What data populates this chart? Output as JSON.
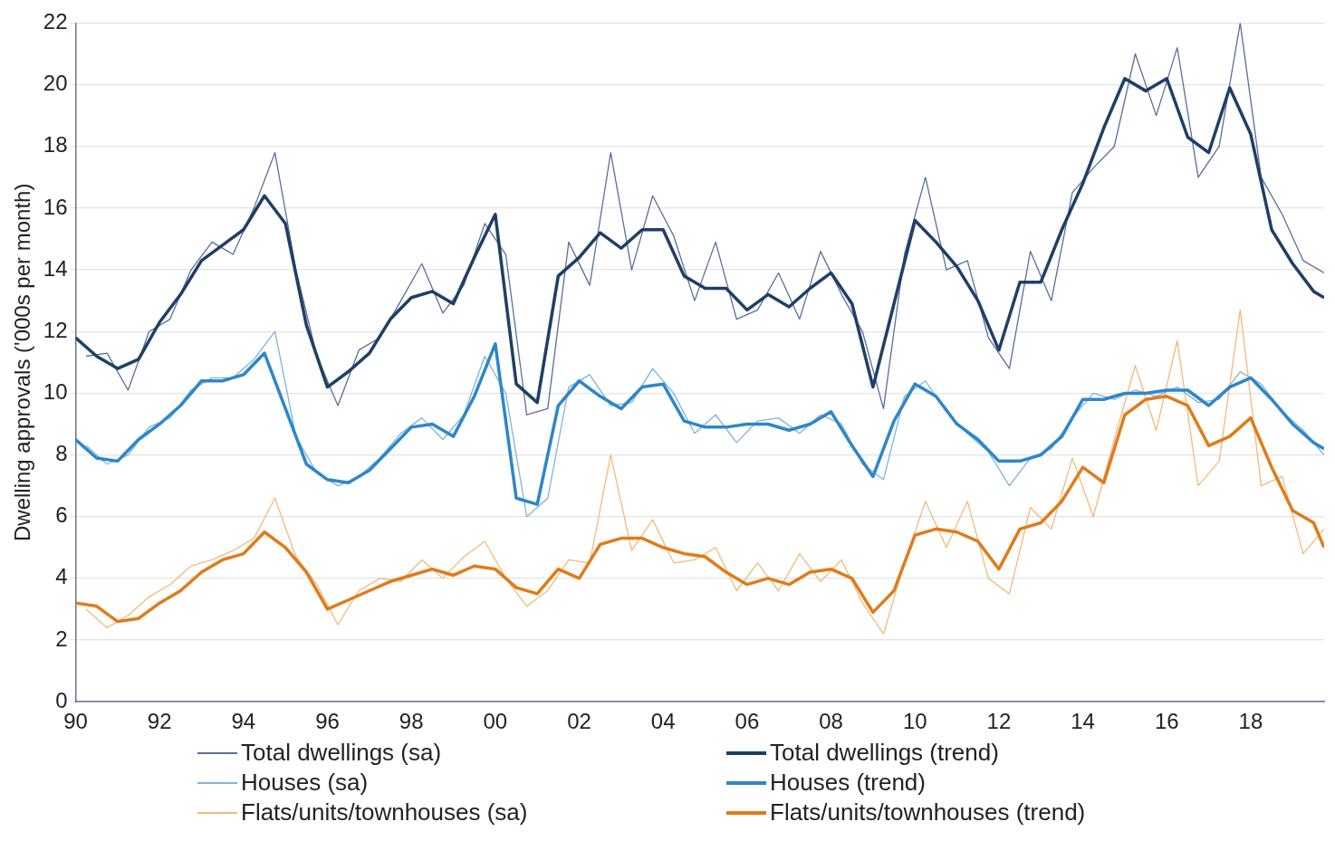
{
  "chart_data": {
    "type": "line",
    "ylabel": "Dwelling approvals ('000s per month)",
    "xlim": [
      1990,
      2019.75
    ],
    "xticks": [
      {
        "value": 1990,
        "label": "90"
      },
      {
        "value": 1992,
        "label": "92"
      },
      {
        "value": 1994,
        "label": "94"
      },
      {
        "value": 1996,
        "label": "96"
      },
      {
        "value": 1998,
        "label": "98"
      },
      {
        "value": 2000,
        "label": "00"
      },
      {
        "value": 2002,
        "label": "02"
      },
      {
        "value": 2004,
        "label": "04"
      },
      {
        "value": 2006,
        "label": "06"
      },
      {
        "value": 2008,
        "label": "08"
      },
      {
        "value": 2010,
        "label": "10"
      },
      {
        "value": 2012,
        "label": "12"
      },
      {
        "value": 2014,
        "label": "14"
      },
      {
        "value": 2016,
        "label": "16"
      },
      {
        "value": 2018,
        "label": "18"
      }
    ],
    "ylim": [
      0,
      22
    ],
    "yticks": [
      0,
      2,
      4,
      6,
      8,
      10,
      12,
      14,
      16,
      18,
      20,
      22
    ],
    "grid": "y",
    "legend": "bottom",
    "marker": "none",
    "series": [
      {
        "name": "Total dwellings (sa)",
        "color": "#5a6e9a",
        "x": [
          1990.25,
          1990.75,
          1991.25,
          1991.75,
          1992.25,
          1992.75,
          1993.25,
          1993.75,
          1994.25,
          1994.75,
          1995.25,
          1995.75,
          1996.25,
          1996.75,
          1997.25,
          1997.75,
          1998.25,
          1998.75,
          1999.25,
          1999.75,
          2000.25,
          2000.75,
          2001.25,
          2001.75,
          2002.25,
          2002.75,
          2003.25,
          2003.75,
          2004.25,
          2004.75,
          2005.25,
          2005.75,
          2006.25,
          2006.75,
          2007.25,
          2007.75,
          2008.25,
          2008.75,
          2009.25,
          2009.75,
          2010.25,
          2010.75,
          2011.25,
          2011.75,
          2012.25,
          2012.75,
          2013.25,
          2013.75,
          2014.25,
          2014.75,
          2015.25,
          2015.75,
          2016.25,
          2016.75,
          2017.25,
          2017.75,
          2018.25,
          2018.75,
          2019.25,
          2019.75
        ],
        "values": [
          11.2,
          11.3,
          10.1,
          12.0,
          12.4,
          14.0,
          14.9,
          14.5,
          16.0,
          17.8,
          14.0,
          11.2,
          9.6,
          11.4,
          11.8,
          13.0,
          14.2,
          12.6,
          13.5,
          15.5,
          14.5,
          9.3,
          9.5,
          14.9,
          13.5,
          17.8,
          14.0,
          16.4,
          15.1,
          13.0,
          14.9,
          12.4,
          12.7,
          13.9,
          12.4,
          14.6,
          13.2,
          12.0,
          9.5,
          14.5,
          17.0,
          14.0,
          14.3,
          11.8,
          10.8,
          14.6,
          13.0,
          16.5,
          17.3,
          18.0,
          21.0,
          19.0,
          21.2,
          17.0,
          18.0,
          22.0,
          17.0,
          15.8,
          14.3,
          13.9
        ]
      },
      {
        "name": "Total dwellings (trend)",
        "color": "#1f3f66",
        "x": [
          1990,
          1990.5,
          1991,
          1991.5,
          1992,
          1992.5,
          1993,
          1993.5,
          1994,
          1994.5,
          1995,
          1995.5,
          1996,
          1996.5,
          1997,
          1997.5,
          1998,
          1998.5,
          1999,
          1999.5,
          2000,
          2000.5,
          2001,
          2001.5,
          2002,
          2002.5,
          2003,
          2003.5,
          2004,
          2004.5,
          2005,
          2005.5,
          2006,
          2006.5,
          2007,
          2007.5,
          2008,
          2008.5,
          2009,
          2009.5,
          2010,
          2010.5,
          2011,
          2011.5,
          2012,
          2012.5,
          2013,
          2013.5,
          2014,
          2014.5,
          2015,
          2015.5,
          2016,
          2016.5,
          2017,
          2017.5,
          2018,
          2018.5,
          2019,
          2019.5,
          2019.75
        ],
        "values": [
          11.8,
          11.2,
          10.8,
          11.1,
          12.3,
          13.2,
          14.3,
          14.8,
          15.3,
          16.4,
          15.5,
          12.2,
          10.2,
          10.7,
          11.3,
          12.4,
          13.1,
          13.3,
          12.9,
          14.4,
          15.8,
          10.3,
          9.7,
          13.8,
          14.4,
          15.2,
          14.7,
          15.3,
          15.3,
          13.8,
          13.4,
          13.4,
          12.7,
          13.2,
          12.8,
          13.4,
          13.9,
          12.9,
          10.2,
          12.9,
          15.6,
          14.9,
          14.1,
          13.0,
          11.4,
          13.6,
          13.6,
          15.3,
          16.8,
          18.6,
          20.2,
          19.8,
          20.2,
          18.3,
          17.8,
          19.9,
          18.4,
          15.3,
          14.2,
          13.3,
          13.1
        ]
      },
      {
        "name": "Houses (sa)",
        "color": "#7fb3df",
        "x": [
          1990.25,
          1990.75,
          1991.25,
          1991.75,
          1992.25,
          1992.75,
          1993.25,
          1993.75,
          1994.25,
          1994.75,
          1995.25,
          1995.75,
          1996.25,
          1996.75,
          1997.25,
          1997.75,
          1998.25,
          1998.75,
          1999.25,
          1999.75,
          2000.25,
          2000.75,
          2001.25,
          2001.75,
          2002.25,
          2002.75,
          2003.25,
          2003.75,
          2004.25,
          2004.75,
          2005.25,
          2005.75,
          2006.25,
          2006.75,
          2007.25,
          2007.75,
          2008.25,
          2008.75,
          2009.25,
          2009.75,
          2010.25,
          2010.75,
          2011.25,
          2011.75,
          2012.25,
          2012.75,
          2013.25,
          2013.75,
          2014.25,
          2014.75,
          2015.25,
          2015.75,
          2016.25,
          2016.75,
          2017.25,
          2017.75,
          2018.25,
          2018.75,
          2019.25,
          2019.75
        ],
        "values": [
          8.3,
          7.7,
          8.0,
          8.9,
          9.2,
          10.1,
          10.5,
          10.5,
          11.1,
          12.0,
          8.6,
          7.4,
          7.0,
          7.3,
          7.9,
          8.7,
          9.2,
          8.5,
          9.3,
          11.2,
          10.0,
          6.0,
          6.6,
          10.2,
          10.6,
          9.6,
          9.7,
          10.8,
          10.0,
          8.7,
          9.3,
          8.4,
          9.1,
          9.2,
          8.7,
          9.3,
          9.0,
          7.7,
          7.2,
          9.9,
          10.4,
          9.4,
          8.7,
          8.1,
          7.0,
          7.9,
          8.2,
          9.2,
          10.0,
          9.8,
          10.1,
          9.9,
          10.2,
          9.7,
          9.8,
          10.7,
          10.3,
          9.4,
          8.8,
          8.0
        ]
      },
      {
        "name": "Houses (trend)",
        "color": "#2e86c8",
        "x": [
          1990,
          1990.5,
          1991,
          1991.5,
          1992,
          1992.5,
          1993,
          1993.5,
          1994,
          1994.5,
          1995,
          1995.5,
          1996,
          1996.5,
          1997,
          1997.5,
          1998,
          1998.5,
          1999,
          1999.5,
          2000,
          2000.5,
          2001,
          2001.5,
          2002,
          2002.5,
          2003,
          2003.5,
          2004,
          2004.5,
          2005,
          2005.5,
          2006,
          2006.5,
          2007,
          2007.5,
          2008,
          2008.5,
          2009,
          2009.5,
          2010,
          2010.5,
          2011,
          2011.5,
          2012,
          2012.5,
          2013,
          2013.5,
          2014,
          2014.5,
          2015,
          2015.5,
          2016,
          2016.5,
          2017,
          2017.5,
          2018,
          2018.5,
          2019,
          2019.5,
          2019.75
        ],
        "values": [
          8.5,
          7.9,
          7.8,
          8.5,
          9.0,
          9.6,
          10.4,
          10.4,
          10.6,
          11.3,
          9.5,
          7.7,
          7.2,
          7.1,
          7.5,
          8.2,
          8.9,
          9.0,
          8.6,
          9.9,
          11.6,
          6.6,
          6.4,
          9.6,
          10.4,
          9.9,
          9.5,
          10.2,
          10.3,
          9.1,
          8.9,
          8.9,
          9.0,
          9.0,
          8.8,
          9.0,
          9.4,
          8.3,
          7.3,
          9.1,
          10.3,
          9.9,
          9.0,
          8.5,
          7.8,
          7.8,
          8.0,
          8.6,
          9.8,
          9.8,
          10.0,
          10.0,
          10.1,
          10.1,
          9.6,
          10.2,
          10.5,
          9.8,
          9.0,
          8.4,
          8.2
        ]
      },
      {
        "name": "Flats/units/townhouses (sa)",
        "color": "#f5b97a",
        "x": [
          1990.25,
          1990.75,
          1991.25,
          1991.75,
          1992.25,
          1992.75,
          1993.25,
          1993.75,
          1994.25,
          1994.75,
          1995.25,
          1995.75,
          1996.25,
          1996.75,
          1997.25,
          1997.75,
          1998.25,
          1998.75,
          1999.25,
          1999.75,
          2000.25,
          2000.75,
          2001.25,
          2001.75,
          2002.25,
          2002.75,
          2003.25,
          2003.75,
          2004.25,
          2004.75,
          2005.25,
          2005.75,
          2006.25,
          2006.75,
          2007.25,
          2007.75,
          2008.25,
          2008.75,
          2009.25,
          2009.75,
          2010.25,
          2010.75,
          2011.25,
          2011.75,
          2012.25,
          2012.75,
          2013.25,
          2013.75,
          2014.25,
          2014.75,
          2015.25,
          2015.75,
          2016.25,
          2016.75,
          2017.25,
          2017.75,
          2018.25,
          2018.75,
          2019.25,
          2019.75
        ],
        "values": [
          3.0,
          2.4,
          2.8,
          3.4,
          3.8,
          4.4,
          4.6,
          4.9,
          5.3,
          6.6,
          4.7,
          3.8,
          2.5,
          3.6,
          4.0,
          3.9,
          4.6,
          4.0,
          4.7,
          5.2,
          4.0,
          3.1,
          3.6,
          4.6,
          4.5,
          8.0,
          4.9,
          5.9,
          4.5,
          4.6,
          5.0,
          3.6,
          4.5,
          3.6,
          4.8,
          3.9,
          4.6,
          3.2,
          2.2,
          4.5,
          6.5,
          5.0,
          6.5,
          4.0,
          3.5,
          6.3,
          5.6,
          7.9,
          6.0,
          8.5,
          10.9,
          8.8,
          11.7,
          7.0,
          7.8,
          12.7,
          7.0,
          7.3,
          4.8,
          5.6
        ]
      },
      {
        "name": "Flats/units/townhouses (trend)",
        "color": "#e07b1a",
        "x": [
          1990,
          1990.5,
          1991,
          1991.5,
          1992,
          1992.5,
          1993,
          1993.5,
          1994,
          1994.5,
          1995,
          1995.5,
          1996,
          1996.5,
          1997,
          1997.5,
          1998,
          1998.5,
          1999,
          1999.5,
          2000,
          2000.5,
          2001,
          2001.5,
          2002,
          2002.5,
          2003,
          2003.5,
          2004,
          2004.5,
          2005,
          2005.5,
          2006,
          2006.5,
          2007,
          2007.5,
          2008,
          2008.5,
          2009,
          2009.5,
          2010,
          2010.5,
          2011,
          2011.5,
          2012,
          2012.5,
          2013,
          2013.5,
          2014,
          2014.5,
          2015,
          2015.5,
          2016,
          2016.5,
          2017,
          2017.5,
          2018,
          2018.5,
          2019,
          2019.5,
          2019.75
        ],
        "values": [
          3.2,
          3.1,
          2.6,
          2.7,
          3.2,
          3.6,
          4.2,
          4.6,
          4.8,
          5.5,
          5.0,
          4.2,
          3.0,
          3.3,
          3.6,
          3.9,
          4.1,
          4.3,
          4.1,
          4.4,
          4.3,
          3.7,
          3.5,
          4.3,
          4.0,
          5.1,
          5.3,
          5.3,
          5.0,
          4.8,
          4.7,
          4.2,
          3.8,
          4.0,
          3.8,
          4.2,
          4.3,
          4.0,
          2.9,
          3.6,
          5.4,
          5.6,
          5.5,
          5.2,
          4.3,
          5.6,
          5.8,
          6.5,
          7.6,
          7.1,
          9.3,
          9.8,
          9.9,
          9.6,
          8.3,
          8.6,
          9.2,
          7.6,
          6.2,
          5.8,
          5.0
        ]
      }
    ]
  }
}
